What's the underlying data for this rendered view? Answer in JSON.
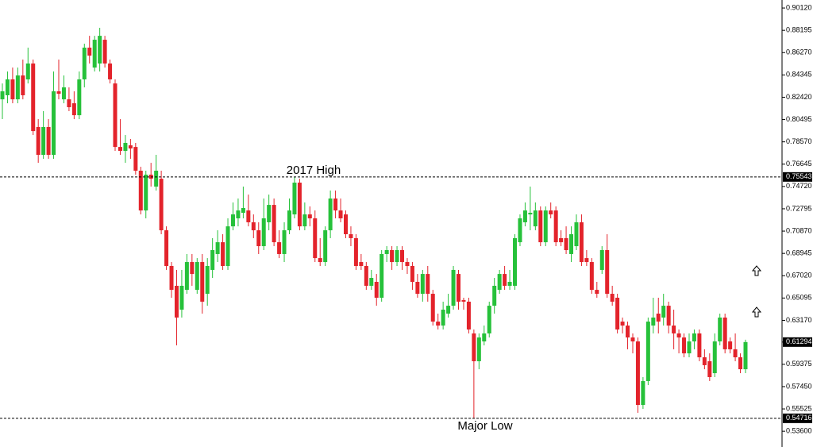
{
  "chart_data": {
    "type": "candlestick",
    "up_color": "#26c13a",
    "down_color": "#e3232b",
    "ylim": [
      0.5224,
      0.9081
    ],
    "yticks": [
      {
        "value": 0.9012,
        "label": "0.90120"
      },
      0.88195,
      {
        "value": 0.8627,
        "label": "0.86270"
      },
      0.84345,
      {
        "value": 0.8242,
        "label": "0.82420"
      },
      0.80495,
      {
        "value": 0.7857,
        "label": "0.78570"
      },
      0.76645,
      {
        "value": 0.7472,
        "label": "0.74720"
      },
      0.72795,
      {
        "value": 0.7087,
        "label": "0.70870"
      },
      0.68945,
      {
        "value": 0.6702,
        "label": "0.67020"
      },
      0.65095,
      {
        "value": 0.6317,
        "label": "0.63170"
      },
      0.59375,
      {
        "value": 0.5745,
        "label": "0.57450"
      },
      0.55525,
      {
        "value": 0.536,
        "label": "0.53600"
      }
    ],
    "hlines": [
      0.75543,
      0.54716
    ],
    "last_price": 0.61294,
    "annotations": [
      {
        "text": "2017 High"
      },
      {
        "text": "Major Low"
      }
    ],
    "open": [
      0.8224,
      0.8259,
      0.8396,
      0.8224,
      0.843,
      0.8396,
      0.8533,
      0.7985,
      0.7745,
      0.7985,
      0.7745,
      0.8293,
      0.8224,
      0.8224,
      0.819,
      0.8087,
      0.8396,
      0.867,
      0.8498,
      0.8533,
      0.8738,
      0.8533,
      0.8361,
      0.7813,
      0.7779,
      0.7827,
      0.7813,
      0.7608,
      0.7265,
      0.7574,
      0.7471,
      0.7539,
      0.7094,
      0.6786,
      0.6615,
      0.6409,
      0.658,
      0.682,
      0.658,
      0.682,
      0.6546,
      0.6752,
      0.6889,
      0.6991,
      0.6786,
      0.7128,
      0.7197,
      0.7245,
      0.7265,
      0.7163,
      0.7094,
      0.6957,
      0.7163,
      0.7313,
      0.6991,
      0.6889,
      0.7094,
      0.7231,
      0.7505,
      0.7128,
      0.7231,
      0.7197,
      0.6854,
      0.682,
      0.7094,
      0.7368,
      0.7265,
      0.7231,
      0.706,
      0.7026,
      0.682,
      0.6786,
      0.6615,
      0.6649,
      0.6512,
      0.6889,
      0.6923,
      0.682,
      0.6923,
      0.682,
      0.6786,
      0.6649,
      0.6546,
      0.6717,
      0.6546,
      0.6306,
      0.6272,
      0.6375,
      0.6443,
      0.6717,
      0.6492,
      0.6478,
      0.6204,
      0.5964,
      0.6135,
      0.6204,
      0.6443,
      0.658,
      0.6717,
      0.6615,
      0.6615,
      0.6991,
      0.7163,
      0.7231,
      0.7128,
      0.7265,
      0.6991,
      0.7265,
      0.7265,
      0.7026,
      0.7026,
      0.6889,
      0.6957,
      0.7163,
      0.6854,
      0.682,
      0.658,
      0.6752,
      0.6923,
      0.6546,
      0.6512,
      0.6306,
      0.6272,
      0.6169,
      0.6135,
      0.5587,
      0.5793,
      0.6272,
      0.6375,
      0.6341,
      0.6443,
      0.6272,
      0.6204,
      0.6169,
      0.6032,
      0.6135,
      0.6204,
      0.5998,
      0.5964,
      0.5861,
      0.6135,
      0.6341,
      0.6135,
      0.6067,
      0.5998,
      0.5895
    ],
    "high": [
      0.8361,
      0.8464,
      0.8498,
      0.8498,
      0.8567,
      0.867,
      0.8567,
      0.8053,
      0.8122,
      0.8053,
      0.8464,
      0.8567,
      0.843,
      0.8327,
      0.8293,
      0.8464,
      0.8704,
      0.8772,
      0.8772,
      0.8841,
      0.8772,
      0.8567,
      0.8396,
      0.8053,
      0.7916,
      0.7882,
      0.7848,
      0.7642,
      0.7608,
      0.7676,
      0.7745,
      0.7608,
      0.7128,
      0.682,
      0.6752,
      0.6752,
      0.6889,
      0.6889,
      0.6854,
      0.6889,
      0.6854,
      0.7026,
      0.7094,
      0.706,
      0.7197,
      0.7334,
      0.7368,
      0.7471,
      0.7402,
      0.7231,
      0.7163,
      0.7368,
      0.7402,
      0.7368,
      0.7094,
      0.7163,
      0.7368,
      0.7554,
      0.7539,
      0.7334,
      0.73,
      0.7265,
      0.7026,
      0.7128,
      0.7437,
      0.7437,
      0.7368,
      0.7265,
      0.7128,
      0.706,
      0.6889,
      0.682,
      0.6752,
      0.6717,
      0.6923,
      0.6957,
      0.6957,
      0.6957,
      0.6957,
      0.6854,
      0.682,
      0.6717,
      0.6752,
      0.6786,
      0.658,
      0.6375,
      0.6478,
      0.6546,
      0.6786,
      0.6752,
      0.6512,
      0.6512,
      0.6238,
      0.6204,
      0.6272,
      0.6478,
      0.6683,
      0.6752,
      0.6786,
      0.6752,
      0.706,
      0.7231,
      0.7334,
      0.7471,
      0.7334,
      0.73,
      0.73,
      0.7334,
      0.73,
      0.7094,
      0.7128,
      0.7128,
      0.7231,
      0.7231,
      0.6923,
      0.6854,
      0.6649,
      0.6957,
      0.706,
      0.6615,
      0.6546,
      0.6341,
      0.6306,
      0.6204,
      0.6169,
      0.5827,
      0.6341,
      0.6512,
      0.6512,
      0.6546,
      0.6478,
      0.6409,
      0.6238,
      0.6204,
      0.6204,
      0.6238,
      0.6238,
      0.6067,
      0.6032,
      0.6204,
      0.6375,
      0.6375,
      0.6169,
      0.6204,
      0.6032,
      0.615
    ],
    "low": [
      0.8053,
      0.819,
      0.819,
      0.819,
      0.8224,
      0.8361,
      0.7916,
      0.7676,
      0.7711,
      0.7711,
      0.7711,
      0.8224,
      0.819,
      0.8122,
      0.8053,
      0.8053,
      0.8327,
      0.8533,
      0.8464,
      0.8464,
      0.8498,
      0.8361,
      0.7779,
      0.7745,
      0.7676,
      0.7711,
      0.7574,
      0.7231,
      0.7197,
      0.7471,
      0.7437,
      0.706,
      0.6752,
      0.6512,
      0.6101,
      0.6341,
      0.6546,
      0.6615,
      0.6546,
      0.6375,
      0.6443,
      0.6683,
      0.682,
      0.6752,
      0.6752,
      0.7094,
      0.7128,
      0.7197,
      0.7128,
      0.7026,
      0.6889,
      0.6923,
      0.7094,
      0.6957,
      0.6854,
      0.682,
      0.706,
      0.7197,
      0.7094,
      0.7094,
      0.7128,
      0.682,
      0.6786,
      0.6786,
      0.7026,
      0.7197,
      0.7163,
      0.7026,
      0.6957,
      0.6752,
      0.6752,
      0.658,
      0.658,
      0.6443,
      0.6478,
      0.682,
      0.6752,
      0.6786,
      0.6752,
      0.6717,
      0.658,
      0.6512,
      0.6478,
      0.6478,
      0.6272,
      0.6238,
      0.6238,
      0.6341,
      0.6409,
      0.6409,
      0.6409,
      0.6204,
      0.5472,
      0.5895,
      0.6101,
      0.6169,
      0.6375,
      0.6546,
      0.658,
      0.658,
      0.658,
      0.6957,
      0.7128,
      0.7094,
      0.7094,
      0.6957,
      0.6957,
      0.7197,
      0.6957,
      0.6957,
      0.6889,
      0.682,
      0.6923,
      0.6786,
      0.6786,
      0.6546,
      0.6512,
      0.6717,
      0.6512,
      0.6443,
      0.6204,
      0.6204,
      0.6067,
      0.6032,
      0.5519,
      0.5553,
      0.5758,
      0.6204,
      0.6204,
      0.6272,
      0.6204,
      0.6067,
      0.6032,
      0.5998,
      0.5998,
      0.6067,
      0.5964,
      0.5895,
      0.5793,
      0.5827,
      0.6101,
      0.6032,
      0.6032,
      0.5964,
      0.5861,
      0.5861
    ],
    "close": [
      0.8293,
      0.8396,
      0.8224,
      0.843,
      0.8259,
      0.8533,
      0.795,
      0.7745,
      0.7985,
      0.7745,
      0.8293,
      0.8272,
      0.8327,
      0.8156,
      0.8087,
      0.8396,
      0.867,
      0.8601,
      0.8738,
      0.8772,
      0.8533,
      0.8396,
      0.7813,
      0.7779,
      0.7848,
      0.78,
      0.7608,
      0.7265,
      0.7574,
      0.7539,
      0.7608,
      0.7094,
      0.6786,
      0.658,
      0.6341,
      0.6615,
      0.682,
      0.6717,
      0.682,
      0.6478,
      0.6786,
      0.6923,
      0.6991,
      0.6786,
      0.7128,
      0.7231,
      0.7265,
      0.7286,
      0.7163,
      0.7094,
      0.6957,
      0.7197,
      0.7313,
      0.6991,
      0.6889,
      0.7094,
      0.7265,
      0.7505,
      0.7128,
      0.7231,
      0.7197,
      0.6854,
      0.682,
      0.7094,
      0.7368,
      0.7265,
      0.7197,
      0.706,
      0.7026,
      0.6786,
      0.6786,
      0.6615,
      0.6683,
      0.6512,
      0.6889,
      0.6923,
      0.682,
      0.6923,
      0.682,
      0.6786,
      0.6649,
      0.6546,
      0.6717,
      0.6546,
      0.6306,
      0.6272,
      0.6409,
      0.6443,
      0.6752,
      0.6478,
      0.6478,
      0.6238,
      0.5964,
      0.6169,
      0.6204,
      0.6443,
      0.6615,
      0.6717,
      0.6615,
      0.6649,
      0.7026,
      0.7197,
      0.7265,
      0.7245,
      0.7265,
      0.6991,
      0.7265,
      0.7231,
      0.6991,
      0.6991,
      0.6923,
      0.706,
      0.7163,
      0.682,
      0.682,
      0.658,
      0.6546,
      0.6923,
      0.6546,
      0.6478,
      0.6238,
      0.6272,
      0.6169,
      0.6135,
      0.5587,
      0.5793,
      0.6306,
      0.6341,
      0.6306,
      0.6443,
      0.6272,
      0.6204,
      0.6169,
      0.6032,
      0.6135,
      0.6204,
      0.5998,
      0.593,
      0.5827,
      0.6135,
      0.6341,
      0.6067,
      0.6067,
      0.5998,
      0.5895,
      0.61294
    ]
  }
}
